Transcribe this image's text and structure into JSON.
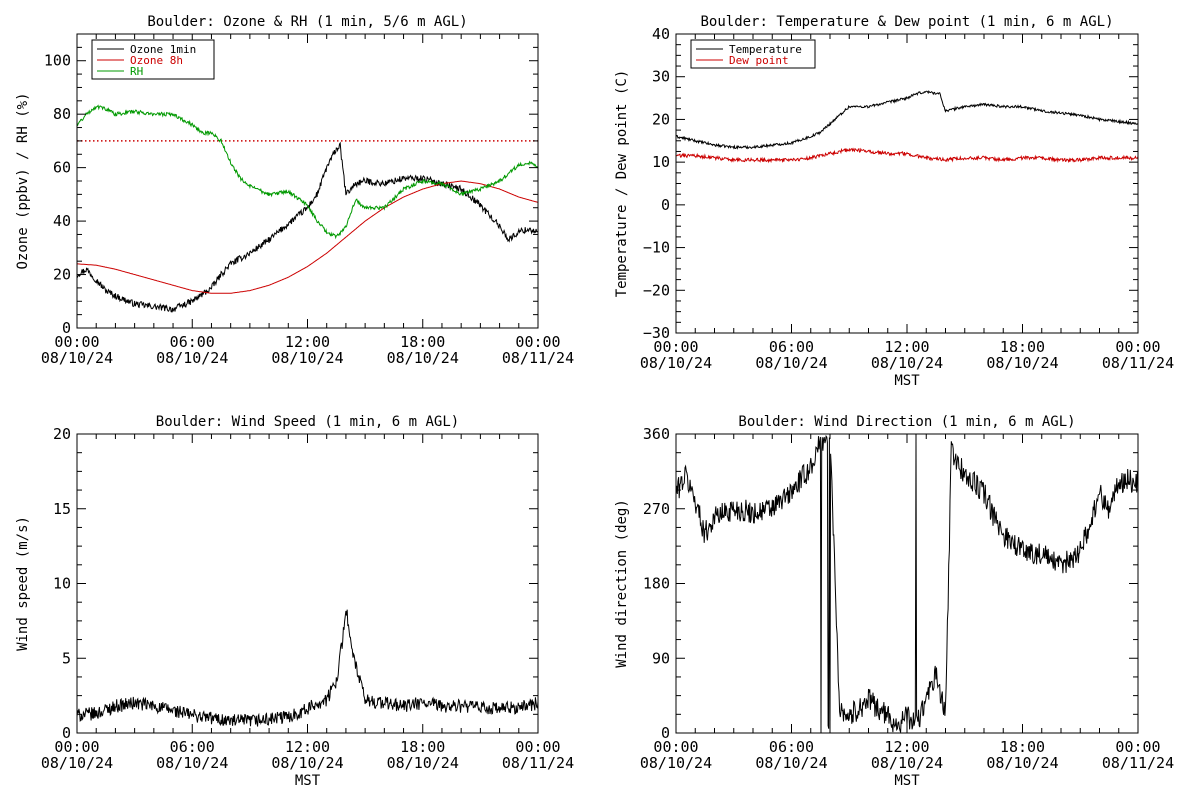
{
  "charts": [
    {
      "type": "line",
      "title": "Boulder: Ozone & RH (1 min, 5/6 m AGL)",
      "xlabel": "",
      "ylabel": "Ozone (ppbv) / RH (%)",
      "xlim": [
        "08/10/24 00:00",
        "08/11/24 00:00"
      ],
      "ylim": [
        0,
        110
      ],
      "yticks": [
        "0",
        "20",
        "40",
        "60",
        "80",
        "100"
      ],
      "ytick_values": [
        0,
        20,
        40,
        60,
        80,
        100
      ],
      "xtick_times": [
        "00:00",
        "06:00",
        "12:00",
        "18:00",
        "00:00"
      ],
      "xtick_dates": [
        "08/10/24",
        "08/10/24",
        "08/10/24",
        "08/10/24",
        "08/11/24"
      ],
      "legend": [
        "Ozone 1min",
        "Ozone 8h",
        "RH"
      ],
      "legend_colors": [
        "#000000",
        "#cc0000",
        "#009900"
      ],
      "reference_line": {
        "y": 70,
        "color": "#cc0000",
        "style": "dotted"
      },
      "series": [
        {
          "name": "Ozone 1min",
          "color": "#000000",
          "noise": 1.2,
          "x": [
            0,
            0.5,
            1,
            1.5,
            2,
            3,
            4,
            5,
            6,
            7,
            7.5,
            8,
            9,
            10,
            11,
            12,
            12.5,
            13,
            13.5,
            13.7,
            14,
            14.5,
            15,
            16,
            17,
            18,
            19,
            20,
            21,
            22,
            22.5,
            23,
            23.5,
            24
          ],
          "y": [
            20,
            22,
            18,
            14,
            12,
            9,
            8,
            7,
            10,
            15,
            20,
            24,
            28,
            33,
            39,
            45,
            50,
            60,
            67,
            68,
            50,
            54,
            55,
            54,
            56,
            56,
            54,
            52,
            46,
            38,
            33,
            36,
            37,
            36
          ]
        },
        {
          "name": "Ozone 8h",
          "color": "#cc0000",
          "noise": 0,
          "x": [
            0,
            1,
            2,
            3,
            4,
            5,
            6,
            7,
            8,
            9,
            10,
            11,
            12,
            13,
            14,
            15,
            16,
            17,
            18,
            19,
            20,
            21,
            22,
            23,
            24
          ],
          "y": [
            24,
            23.5,
            22,
            20,
            18,
            16,
            14,
            13,
            13,
            14,
            16,
            19,
            23,
            28,
            34,
            40,
            45,
            49,
            52,
            54,
            55,
            54,
            52,
            49,
            47
          ]
        },
        {
          "name": "RH",
          "color": "#009900",
          "noise": 0.7,
          "x": [
            0,
            0.5,
            1,
            1.5,
            2,
            3,
            4,
            5,
            6,
            6.5,
            7,
            7.5,
            8,
            8.5,
            9,
            10,
            11,
            12,
            12.5,
            13,
            13.5,
            14,
            14.5,
            15,
            16,
            17,
            18,
            19,
            20,
            21,
            22,
            22.5,
            23,
            23.5,
            24
          ],
          "y": [
            76,
            80,
            83,
            82,
            80,
            81,
            80,
            80,
            76,
            73,
            73,
            70,
            62,
            56,
            53,
            50,
            51,
            46,
            40,
            36,
            34,
            38,
            48,
            45,
            45,
            52,
            55,
            54,
            50,
            52,
            55,
            58,
            61,
            62,
            60
          ]
        }
      ]
    },
    {
      "type": "line",
      "title": "Boulder: Temperature & Dew point (1 min, 6 m AGL)",
      "xlabel": "MST",
      "ylabel": "Temperature / Dew point (C)",
      "xlim": [
        "08/10/24 00:00",
        "08/11/24 00:00"
      ],
      "ylim": [
        -30,
        40
      ],
      "yticks": [
        "−30",
        "−20",
        "−10",
        "0",
        "10",
        "20",
        "30",
        "40"
      ],
      "ytick_values": [
        -30,
        -20,
        -10,
        0,
        10,
        20,
        30,
        40
      ],
      "xtick_times": [
        "00:00",
        "06:00",
        "12:00",
        "18:00",
        "00:00"
      ],
      "xtick_dates": [
        "08/10/24",
        "08/10/24",
        "08/10/24",
        "08/10/24",
        "08/11/24"
      ],
      "legend": [
        "Temperature",
        "Dew point"
      ],
      "legend_colors": [
        "#000000",
        "#cc0000"
      ],
      "series": [
        {
          "name": "Temperature",
          "color": "#000000",
          "noise": 0.3,
          "x": [
            0,
            1,
            2,
            3,
            4,
            5,
            6,
            7,
            7.5,
            8,
            8.5,
            9,
            10,
            11,
            12,
            12.5,
            13,
            13.7,
            14,
            15,
            16,
            17,
            18,
            19,
            20,
            21,
            22,
            23,
            24
          ],
          "y": [
            16,
            15,
            14,
            13.5,
            13.5,
            14,
            14.5,
            16,
            17,
            19,
            21,
            23,
            23,
            24,
            25,
            26,
            26.5,
            26,
            22,
            23,
            23.5,
            23,
            23,
            22,
            21.5,
            21,
            20,
            19.5,
            19
          ]
        },
        {
          "name": "Dew point",
          "color": "#cc0000",
          "noise": 0.4,
          "x": [
            0,
            1,
            2,
            3,
            4,
            5,
            6,
            7,
            8,
            9,
            10,
            11,
            12,
            13,
            14,
            15,
            16,
            17,
            18,
            19,
            20,
            21,
            22,
            23,
            24
          ],
          "y": [
            11.5,
            11.5,
            11,
            10.5,
            10.5,
            10.5,
            10.5,
            11,
            12,
            13,
            12.5,
            12,
            12,
            11,
            10.5,
            11,
            11,
            10.5,
            11,
            11,
            10.5,
            10.5,
            11,
            11,
            11
          ]
        }
      ]
    },
    {
      "type": "line",
      "title": "Boulder: Wind Speed (1 min, 6 m AGL)",
      "xlabel": "MST",
      "ylabel": "Wind speed (m/s)",
      "xlim": [
        "08/10/24 00:00",
        "08/11/24 00:00"
      ],
      "ylim": [
        0,
        20
      ],
      "yticks": [
        "0",
        "5",
        "10",
        "15",
        "20"
      ],
      "ytick_values": [
        0,
        5,
        10,
        15,
        20
      ],
      "xtick_times": [
        "00:00",
        "06:00",
        "12:00",
        "18:00",
        "00:00"
      ],
      "xtick_dates": [
        "08/10/24",
        "08/10/24",
        "08/10/24",
        "08/10/24",
        "08/11/24"
      ],
      "series": [
        {
          "name": "",
          "color": "#000000",
          "noise": 0.45,
          "x": [
            0,
            1,
            2,
            3,
            4,
            5,
            6,
            7,
            8,
            9,
            10,
            11,
            12,
            12.5,
            13,
            13.5,
            13.8,
            14,
            14.3,
            15,
            16,
            17,
            18,
            19,
            20,
            21,
            22,
            23,
            24
          ],
          "y": [
            1.2,
            1.3,
            1.8,
            2.0,
            1.8,
            1.5,
            1.2,
            1.0,
            0.8,
            0.8,
            0.9,
            1.1,
            1.6,
            2.0,
            2.2,
            3.5,
            6.0,
            8.5,
            5.5,
            2.2,
            2.0,
            1.8,
            2.0,
            1.8,
            1.8,
            1.7,
            1.6,
            1.7,
            2.0
          ]
        }
      ]
    },
    {
      "type": "line",
      "title": "Boulder: Wind Direction (1 min, 6 m AGL)",
      "xlabel": "MST",
      "ylabel": "Wind direction (deg)",
      "xlim": [
        "08/10/24 00:00",
        "08/11/24 00:00"
      ],
      "ylim": [
        0,
        360
      ],
      "yticks": [
        "0",
        "90",
        "180",
        "270",
        "360"
      ],
      "ytick_values": [
        0,
        90,
        180,
        270,
        360
      ],
      "xtick_times": [
        "00:00",
        "06:00",
        "12:00",
        "18:00",
        "00:00"
      ],
      "xtick_dates": [
        "08/10/24",
        "08/10/24",
        "08/10/24",
        "08/10/24",
        "08/11/24"
      ],
      "series": [
        {
          "name": "",
          "color": "#000000",
          "noise": 14,
          "wrap": true,
          "x": [
            0,
            0.5,
            1,
            1.5,
            2,
            3,
            4,
            5,
            6,
            7,
            7.5,
            8,
            8.5,
            9,
            9.5,
            10,
            11,
            11.5,
            12,
            12.5,
            13,
            13.5,
            14,
            14.3,
            15,
            16,
            16.5,
            17,
            18,
            19,
            20,
            21,
            21.5,
            22,
            22.5,
            23,
            23.5,
            24
          ],
          "y": [
            290,
            310,
            280,
            240,
            260,
            270,
            265,
            270,
            290,
            320,
            350,
            360,
            30,
            20,
            30,
            40,
            20,
            10,
            20,
            10,
            40,
            70,
            20,
            340,
            310,
            290,
            260,
            240,
            220,
            215,
            200,
            220,
            250,
            290,
            270,
            300,
            305,
            300
          ]
        }
      ]
    }
  ]
}
